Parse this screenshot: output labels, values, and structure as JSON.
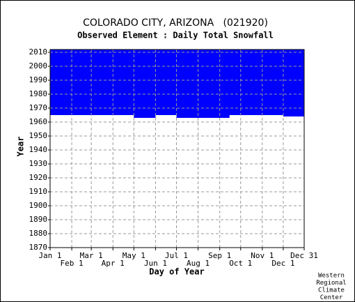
{
  "chart_data": {
    "type": "availability",
    "title": "COLORADO CITY, ARIZONA   (021920)",
    "subtitle": "Observed Element : Daily Total Snowfall",
    "y_label": "Year",
    "x_label": "Day of Year",
    "footer": [
      "Western",
      "Regional",
      "Climate",
      "Center"
    ],
    "color": "#0000ff",
    "grid": true,
    "xlim": [
      1,
      365
    ],
    "ylim": [
      1870,
      2012
    ],
    "xticks": [
      {
        "value": 1,
        "label": "Jan 1"
      },
      {
        "value": 32,
        "label": "Feb 1"
      },
      {
        "value": 60,
        "label": "Mar 1"
      },
      {
        "value": 91,
        "label": "Apr 1"
      },
      {
        "value": 121,
        "label": "May 1"
      },
      {
        "value": 152,
        "label": "Jun 1"
      },
      {
        "value": 182,
        "label": "Jul 1"
      },
      {
        "value": 213,
        "label": "Aug 1"
      },
      {
        "value": 244,
        "label": "Sep 1"
      },
      {
        "value": 274,
        "label": "Oct 1"
      },
      {
        "value": 305,
        "label": "Nov 1"
      },
      {
        "value": 335,
        "label": "Dec 1"
      },
      {
        "value": 365,
        "label": "Dec 31"
      }
    ],
    "yticks": [
      1870,
      1880,
      1890,
      1900,
      1910,
      1920,
      1930,
      1940,
      1950,
      1960,
      1970,
      1980,
      1990,
      2000,
      2010
    ],
    "blocks": [
      {
        "x": [
          1,
          365
        ],
        "y": [
          1965,
          2012
        ]
      },
      {
        "x": [
          121,
          152
        ],
        "y": [
          1963,
          1965
        ]
      },
      {
        "x": [
          182,
          258
        ],
        "y": [
          1963,
          1965
        ]
      },
      {
        "x": [
          335,
          365
        ],
        "y": [
          1964,
          1965
        ]
      }
    ]
  }
}
